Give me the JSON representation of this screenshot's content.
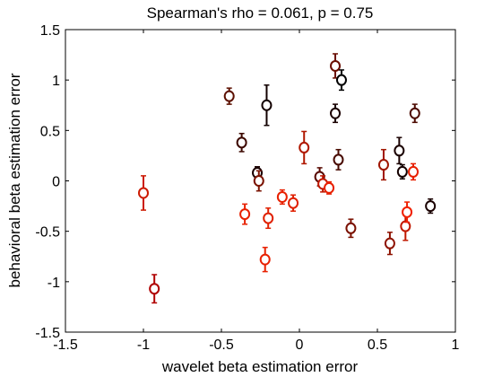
{
  "chart_data": {
    "type": "scatter",
    "title": "Spearman's rho = 0.061, p = 0.75",
    "xlabel": "wavelet beta estimation error",
    "ylabel": "behavioral beta estimation error",
    "xlim": [
      -1.5,
      1
    ],
    "ylim": [
      -1.5,
      1.5
    ],
    "xticks": [
      -1.5,
      -1,
      -0.5,
      0,
      0.5,
      1
    ],
    "yticks": [
      -1.5,
      -1,
      -0.5,
      0,
      0.5,
      1,
      1.5
    ],
    "xtick_labels": [
      "-1.5",
      "-1",
      "-0.5",
      "0",
      "0.5",
      "1"
    ],
    "ytick_labels": [
      "-1.5",
      "-1",
      "-0.5",
      "0",
      "0.5",
      "1",
      "1.5"
    ],
    "grid": false,
    "marker": "open circle with vertical error bar",
    "points": [
      {
        "x": -1.0,
        "y": -0.12,
        "err": 0.17,
        "color": "#cc1a00"
      },
      {
        "x": -0.93,
        "y": -1.07,
        "err": 0.14,
        "color": "#b00000"
      },
      {
        "x": -0.45,
        "y": 0.84,
        "err": 0.08,
        "color": "#5c1000"
      },
      {
        "x": -0.37,
        "y": 0.38,
        "err": 0.09,
        "color": "#3c0800"
      },
      {
        "x": -0.35,
        "y": -0.33,
        "err": 0.1,
        "color": "#e82000"
      },
      {
        "x": -0.27,
        "y": 0.08,
        "err": 0.06,
        "color": "#1a0000"
      },
      {
        "x": -0.26,
        "y": 0.0,
        "err": 0.1,
        "color": "#7a1200"
      },
      {
        "x": -0.22,
        "y": -0.78,
        "err": 0.12,
        "color": "#e82000"
      },
      {
        "x": -0.21,
        "y": 0.75,
        "err": 0.2,
        "color": "#120000"
      },
      {
        "x": -0.2,
        "y": -0.37,
        "err": 0.1,
        "color": "#e02000"
      },
      {
        "x": -0.11,
        "y": -0.16,
        "err": 0.07,
        "color": "#e82000"
      },
      {
        "x": -0.04,
        "y": -0.22,
        "err": 0.08,
        "color": "#e02000"
      },
      {
        "x": 0.03,
        "y": 0.33,
        "err": 0.16,
        "color": "#b01800"
      },
      {
        "x": 0.13,
        "y": 0.04,
        "err": 0.09,
        "color": "#580800"
      },
      {
        "x": 0.15,
        "y": -0.03,
        "err": 0.08,
        "color": "#c01800"
      },
      {
        "x": 0.19,
        "y": -0.07,
        "err": 0.06,
        "color": "#e82000"
      },
      {
        "x": 0.23,
        "y": 1.14,
        "err": 0.12,
        "color": "#6a0e00"
      },
      {
        "x": 0.23,
        "y": 0.67,
        "err": 0.09,
        "color": "#1a0000"
      },
      {
        "x": 0.25,
        "y": 0.21,
        "err": 0.1,
        "color": "#480a00"
      },
      {
        "x": 0.27,
        "y": 1.0,
        "err": 0.1,
        "color": "#000000"
      },
      {
        "x": 0.33,
        "y": -0.47,
        "err": 0.09,
        "color": "#7a1000"
      },
      {
        "x": 0.54,
        "y": 0.16,
        "err": 0.15,
        "color": "#a01600"
      },
      {
        "x": 0.58,
        "y": -0.62,
        "err": 0.11,
        "color": "#8e1200"
      },
      {
        "x": 0.64,
        "y": 0.3,
        "err": 0.13,
        "color": "#1a0000"
      },
      {
        "x": 0.66,
        "y": 0.09,
        "err": 0.07,
        "color": "#140000"
      },
      {
        "x": 0.68,
        "y": -0.45,
        "err": 0.14,
        "color": "#c01800"
      },
      {
        "x": 0.69,
        "y": -0.31,
        "err": 0.1,
        "color": "#f02000"
      },
      {
        "x": 0.73,
        "y": 0.09,
        "err": 0.08,
        "color": "#e82000"
      },
      {
        "x": 0.74,
        "y": 0.67,
        "err": 0.09,
        "color": "#4c0a00"
      },
      {
        "x": 0.84,
        "y": -0.25,
        "err": 0.07,
        "color": "#1a0000"
      }
    ]
  }
}
